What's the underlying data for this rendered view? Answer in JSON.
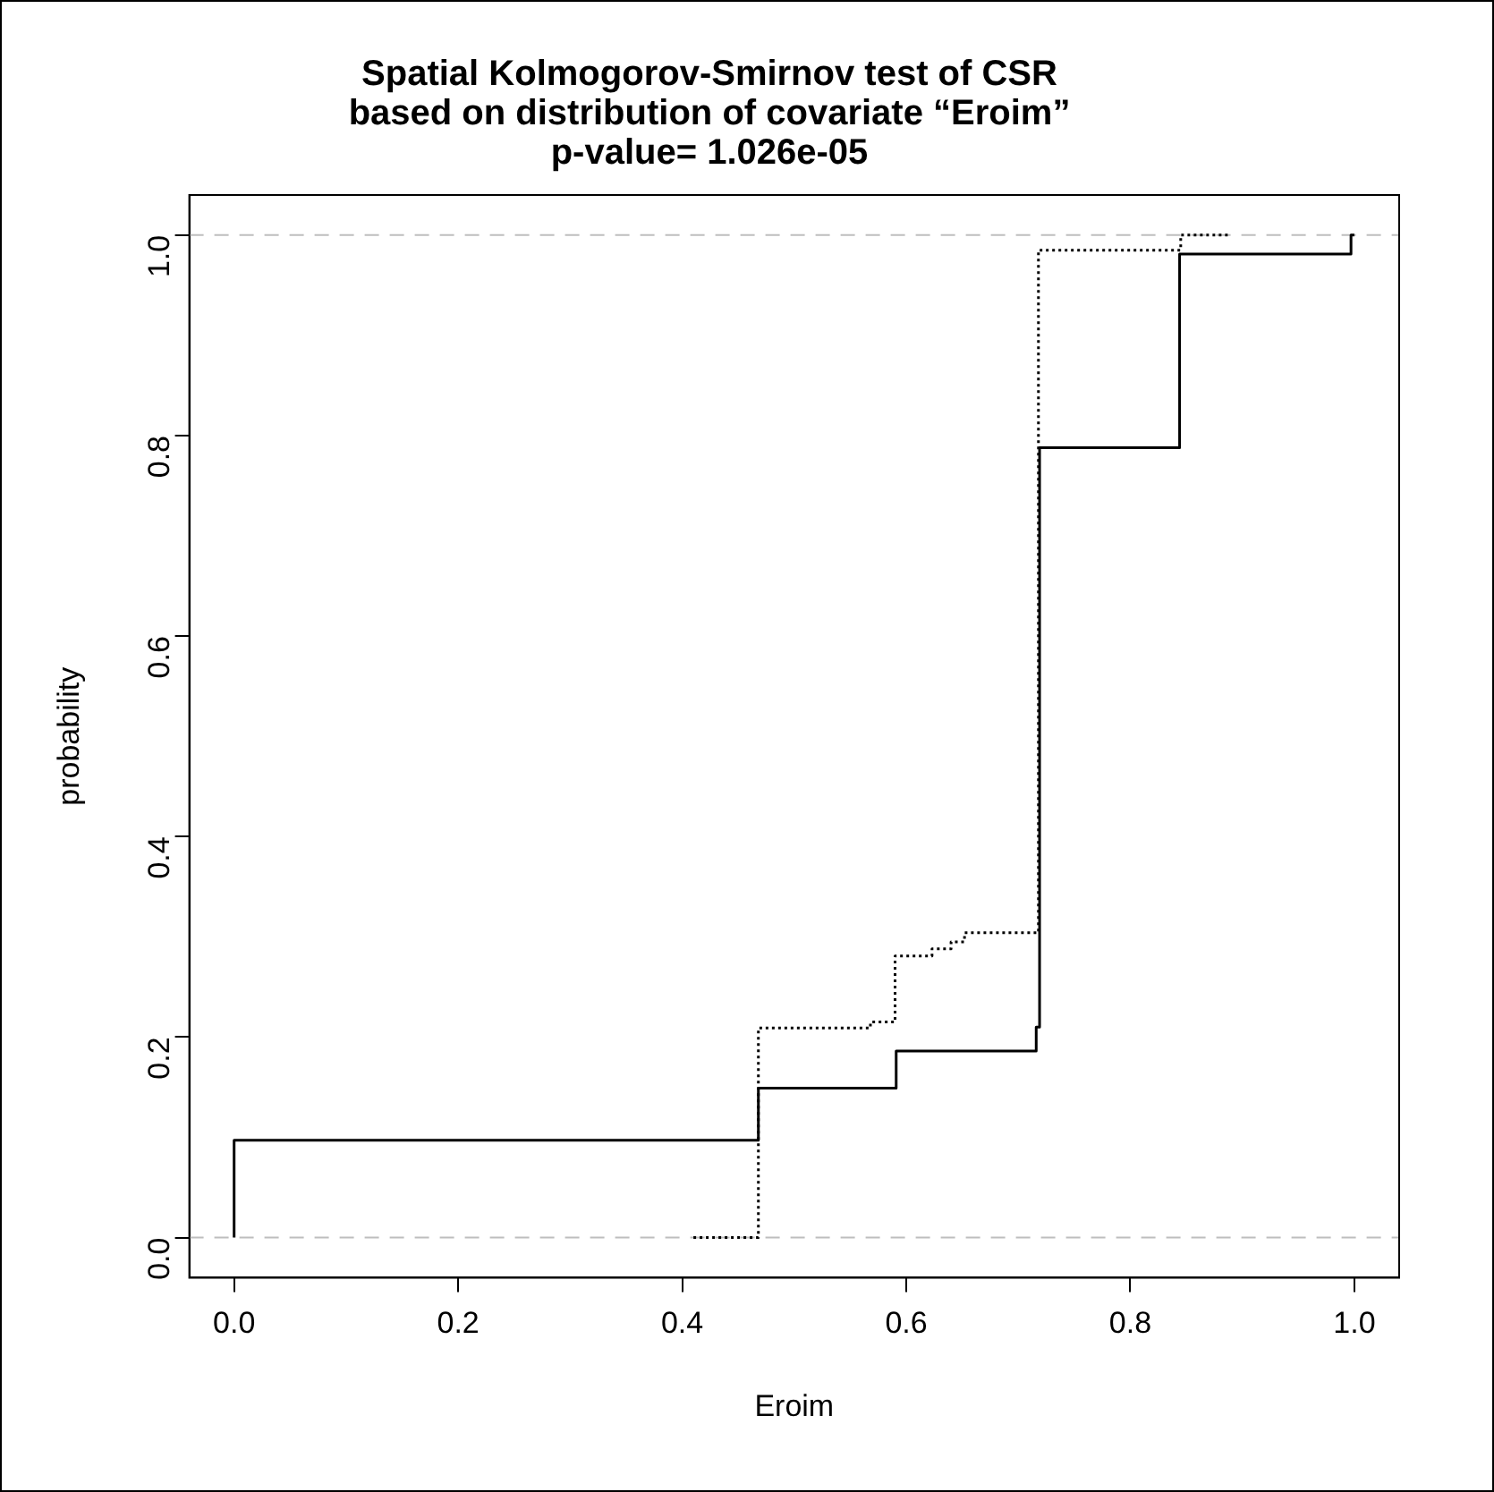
{
  "chart_data": {
    "type": "step",
    "title": "Spatial Kolmogorov-Smirnov test of CSR\nbased on distribution of covariate “Eroim”\np-value= 1.026e-05",
    "xlabel": "Eroim",
    "ylabel": "probability",
    "xlim": [
      -0.04,
      1.04
    ],
    "ylim": [
      -0.04,
      1.04
    ],
    "xticks": [
      {
        "value": 0,
        "label": "0.0"
      },
      {
        "value": 0.2,
        "label": "0.2"
      },
      {
        "value": 0.4,
        "label": "0.4"
      },
      {
        "value": 0.6,
        "label": "0.6"
      },
      {
        "value": 0.8,
        "label": "0.8"
      },
      {
        "value": 1,
        "label": "1.0"
      }
    ],
    "yticks": [
      {
        "value": 0,
        "label": "0.0"
      },
      {
        "value": 0.2,
        "label": "0.2"
      },
      {
        "value": 0.4,
        "label": "0.4"
      },
      {
        "value": 0.6,
        "label": "0.6"
      },
      {
        "value": 0.8,
        "label": "0.8"
      },
      {
        "value": 1,
        "label": "1.0"
      }
    ],
    "grid": false,
    "legend": false,
    "series": [
      {
        "color": "#000000",
        "line_style": "solid",
        "x": [
          0,
          0,
          0.468,
          0.591,
          0.716,
          0.719,
          0.844,
          0.997,
          1.0
        ],
        "values": [
          0,
          0.097,
          0.149,
          0.186,
          0.21,
          0.788,
          0.981,
          1.0,
          1.0
        ]
      },
      {
        "color": "#000000",
        "line_style": "dotted",
        "x": [
          0.41,
          0.468,
          0.568,
          0.59,
          0.623,
          0.64,
          0.652,
          0.718,
          0.718,
          0.845,
          0.89
        ],
        "values": [
          0,
          0.209,
          0.215,
          0.281,
          0.288,
          0.295,
          0.304,
          0.38,
          0.985,
          1.0,
          1.0
        ]
      }
    ],
    "ref_lines": [
      {
        "axis": "y",
        "value": 0,
        "color": "#bebebe",
        "line_style": "dashed"
      },
      {
        "axis": "y",
        "value": 1,
        "color": "#bebebe",
        "line_style": "dashed"
      }
    ]
  }
}
